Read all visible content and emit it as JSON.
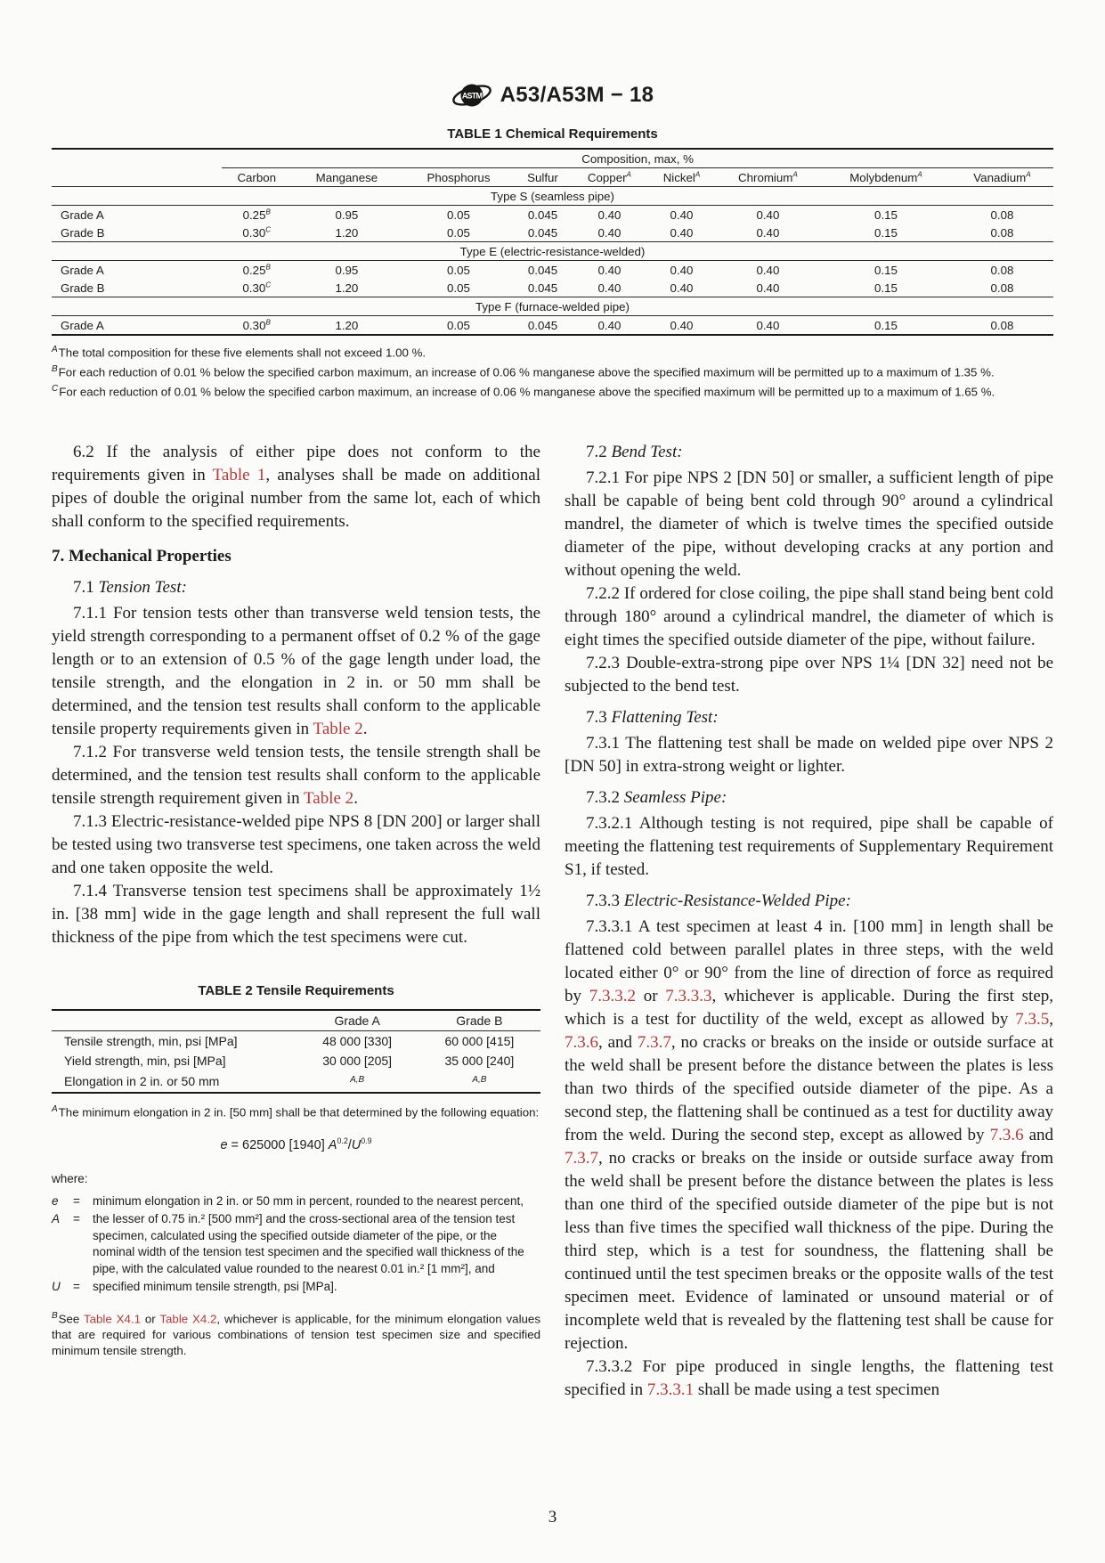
{
  "header": {
    "title": "A53/A53M − 18",
    "logo": "astm-logo"
  },
  "colors": {
    "link": "#b13a3a",
    "text": "#1c1c1c"
  },
  "table1": {
    "title": "TABLE 1 Chemical Requirements",
    "span_header": "Composition, max, %",
    "columns": [
      {
        "label": "Carbon"
      },
      {
        "label": "Manganese"
      },
      {
        "label": "Phosphorus"
      },
      {
        "label": "Sulfur"
      },
      {
        "label": "Copper",
        "sup": "A"
      },
      {
        "label": "Nickel",
        "sup": "A"
      },
      {
        "label": "Chromium",
        "sup": "A"
      },
      {
        "label": "Molybdenum",
        "sup": "A"
      },
      {
        "label": "Vanadium",
        "sup": "A"
      }
    ],
    "sections": [
      {
        "label": "Type S (seamless pipe)",
        "rows": [
          {
            "grade": "Grade A",
            "cells": [
              {
                "v": "0.25",
                "sup": "B"
              },
              "0.95",
              "0.05",
              "0.045",
              "0.40",
              "0.40",
              "0.40",
              "0.15",
              "0.08"
            ]
          },
          {
            "grade": "Grade B",
            "cells": [
              {
                "v": "0.30",
                "sup": "C"
              },
              "1.20",
              "0.05",
              "0.045",
              "0.40",
              "0.40",
              "0.40",
              "0.15",
              "0.08"
            ]
          }
        ]
      },
      {
        "label": "Type E (electric-resistance-welded)",
        "rows": [
          {
            "grade": "Grade A",
            "cells": [
              {
                "v": "0.25",
                "sup": "B"
              },
              "0.95",
              "0.05",
              "0.045",
              "0.40",
              "0.40",
              "0.40",
              "0.15",
              "0.08"
            ]
          },
          {
            "grade": "Grade B",
            "cells": [
              {
                "v": "0.30",
                "sup": "C"
              },
              "1.20",
              "0.05",
              "0.045",
              "0.40",
              "0.40",
              "0.40",
              "0.15",
              "0.08"
            ]
          }
        ]
      },
      {
        "label": "Type F (furnace-welded pipe)",
        "rows": [
          {
            "grade": "Grade A",
            "cells": [
              {
                "v": "0.30",
                "sup": "B"
              },
              "1.20",
              "0.05",
              "0.045",
              "0.40",
              "0.40",
              "0.40",
              "0.15",
              "0.08"
            ]
          }
        ]
      }
    ],
    "footnotes": [
      {
        "sup": "A",
        "text": "The total composition for these five elements shall not exceed 1.00 %."
      },
      {
        "sup": "B",
        "text": "For each reduction of 0.01 % below the specified carbon maximum, an increase of 0.06 % manganese above the specified maximum will be permitted up to a maximum of 1.35 %."
      },
      {
        "sup": "C",
        "text": "For each reduction of 0.01 % below the specified carbon maximum, an increase of 0.06 % manganese above the specified maximum will be permitted up to a maximum of 1.65 %."
      }
    ]
  },
  "body": {
    "left": [
      {
        "type": "para",
        "segments": [
          "6.2 If the analysis of either pipe does not conform to the requirements given in ",
          {
            "t": "Table 1",
            "s": "link"
          },
          ", analyses shall be made on additional pipes of double the original number from the same lot, each of which shall conform to the specified requirements."
        ]
      },
      {
        "type": "heading",
        "text": "7. Mechanical Properties"
      },
      {
        "type": "subheading",
        "segments": [
          "7.1 ",
          {
            "t": "Tension Test:",
            "s": "it"
          }
        ]
      },
      {
        "type": "para",
        "segments": [
          "7.1.1 For tension tests other than transverse weld tension tests, the yield strength corresponding to a permanent offset of 0.2 % of the gage length or to an extension of 0.5 % of the gage length under load, the tensile strength, and the elongation in 2 in. or 50 mm shall be determined, and the tension test results shall conform to the applicable tensile property requirements given in ",
          {
            "t": "Table 2",
            "s": "link"
          },
          "."
        ]
      },
      {
        "type": "para",
        "segments": [
          "7.1.2 For transverse weld tension tests, the tensile strength shall be determined, and the tension test results shall conform to the applicable tensile strength requirement given in ",
          {
            "t": "Table 2",
            "s": "link"
          },
          "."
        ]
      },
      {
        "type": "para",
        "segments": [
          "7.1.3 Electric-resistance-welded pipe NPS 8 [DN 200] or larger shall be tested using two transverse test specimens, one taken across the weld and one taken opposite the weld."
        ]
      },
      {
        "type": "para",
        "segments": [
          "7.1.4 Transverse tension test specimens shall be approximately 1½ in. [38 mm] wide in the gage length and shall represent the full wall thickness of the pipe from which the test specimens were cut."
        ]
      }
    ],
    "right": [
      {
        "type": "subheading",
        "segments": [
          "7.2 ",
          {
            "t": "Bend Test:",
            "s": "it"
          }
        ]
      },
      {
        "type": "para",
        "segments": [
          "7.2.1 For pipe NPS 2 [DN 50] or smaller, a sufficient length of pipe shall be capable of being bent cold through 90° around a cylindrical mandrel, the diameter of which is twelve times the specified outside diameter of the pipe, without developing cracks at any portion and without opening the weld."
        ]
      },
      {
        "type": "para",
        "segments": [
          "7.2.2 If ordered for close coiling, the pipe shall stand being bent cold through 180° around a cylindrical mandrel, the diameter of which is eight times the specified outside diameter of the pipe, without failure."
        ]
      },
      {
        "type": "para",
        "segments": [
          "7.2.3 Double-extra-strong pipe over NPS 1¼ [DN 32] need not be subjected to the bend test."
        ]
      },
      {
        "type": "subheading",
        "segments": [
          "7.3 ",
          {
            "t": "Flattening Test:",
            "s": "it"
          }
        ]
      },
      {
        "type": "para",
        "segments": [
          "7.3.1 The flattening test shall be made on welded pipe over NPS 2 [DN 50] in extra-strong weight or lighter."
        ]
      },
      {
        "type": "subheading",
        "segments": [
          "7.3.2 ",
          {
            "t": "Seamless Pipe:",
            "s": "it"
          }
        ]
      },
      {
        "type": "para",
        "segments": [
          "7.3.2.1 Although testing is not required, pipe shall be capable of meeting the flattening test requirements of Supplementary Requirement S1, if tested."
        ]
      },
      {
        "type": "subheading",
        "segments": [
          "7.3.3 ",
          {
            "t": "Electric-Resistance-Welded Pipe:",
            "s": "it"
          }
        ]
      },
      {
        "type": "para",
        "segments": [
          "7.3.3.1 A test specimen at least 4 in. [100 mm] in length shall be flattened cold between parallel plates in three steps, with the weld located either 0° or 90° from the line of direction of force as required by ",
          {
            "t": "7.3.3.2",
            "s": "link"
          },
          " or ",
          {
            "t": "7.3.3.3",
            "s": "link"
          },
          ", whichever is applicable. During the first step, which is a test for ductility of the weld, except as allowed by ",
          {
            "t": "7.3.5",
            "s": "link"
          },
          ", ",
          {
            "t": "7.3.6",
            "s": "link"
          },
          ", and ",
          {
            "t": "7.3.7",
            "s": "link"
          },
          ", no cracks or breaks on the inside or outside surface at the weld shall be present before the distance between the plates is less than two thirds of the specified outside diameter of the pipe. As a second step, the flattening shall be continued as a test for ductility away from the weld. During the second step, except as allowed by ",
          {
            "t": "7.3.6",
            "s": "link"
          },
          " and ",
          {
            "t": "7.3.7",
            "s": "link"
          },
          ", no cracks or breaks on the inside or outside surface away from the weld shall be present before the distance between the plates is less than one third of the specified outside diameter of the pipe but is not less than five times the specified wall thickness of the pipe. During the third step, which is a test for soundness, the flattening shall be continued until the test specimen breaks or the opposite walls of the test specimen meet. Evidence of laminated or unsound material or of incomplete weld that is revealed by the flattening test shall be cause for rejection."
        ]
      },
      {
        "type": "para",
        "segments": [
          "7.3.3.2 For pipe produced in single lengths, the flattening test specified in ",
          {
            "t": "7.3.3.1",
            "s": "link"
          },
          " shall be made using a test specimen"
        ]
      }
    ]
  },
  "table2": {
    "title": "TABLE 2 Tensile Requirements",
    "columns": [
      "Grade A",
      "Grade B"
    ],
    "rows": [
      {
        "label": "Tensile strength, min, psi [MPa]",
        "a": "48 000 [330]",
        "b": "60 000 [415]"
      },
      {
        "label": "Yield strength, min, psi [MPa]",
        "a": "30 000 [205]",
        "b": "35 000 [240]"
      },
      {
        "label": "Elongation in 2 in. or 50 mm",
        "a": "A,B",
        "b": "A,B",
        "sup": true
      }
    ],
    "footnote_a": {
      "sup": "A",
      "segments": [
        "The minimum elongation in 2 in. [50 mm] shall be that determined by the following equation:"
      ]
    },
    "equation": [
      {
        "t": "e",
        "s": "it"
      },
      {
        "t": " = 625000 [1940] "
      },
      {
        "t": "A",
        "s": "it"
      },
      {
        "t": "0.2",
        "s": "sup"
      },
      {
        "t": "/"
      },
      {
        "t": "U",
        "s": "it"
      },
      {
        "t": "0.9",
        "s": "sup"
      }
    ],
    "where_label": "where:",
    "definitions": [
      {
        "sym": "e",
        "text": "minimum elongation in 2 in. or 50 mm in percent, rounded to the nearest percent,"
      },
      {
        "sym": "A",
        "text": "the lesser of 0.75 in.² [500 mm²] and the cross-sectional area of the tension test specimen, calculated using the specified outside diameter of the pipe, or the nominal width of the tension test specimen and the specified wall thickness of the pipe, with the calculated value rounded to the nearest 0.01 in.² [1 mm²], and"
      },
      {
        "sym": "U",
        "text": "specified minimum tensile strength, psi [MPa]."
      }
    ],
    "footnote_b": {
      "sup": "B",
      "segments": [
        "See ",
        {
          "t": "Table X4.1",
          "s": "link"
        },
        " or ",
        {
          "t": "Table X4.2",
          "s": "link"
        },
        ", whichever is applicable, for the minimum elongation values that are required for various combinations of tension test specimen size and specified minimum tensile strength."
      ]
    }
  },
  "footer": {
    "page_number": "3"
  }
}
